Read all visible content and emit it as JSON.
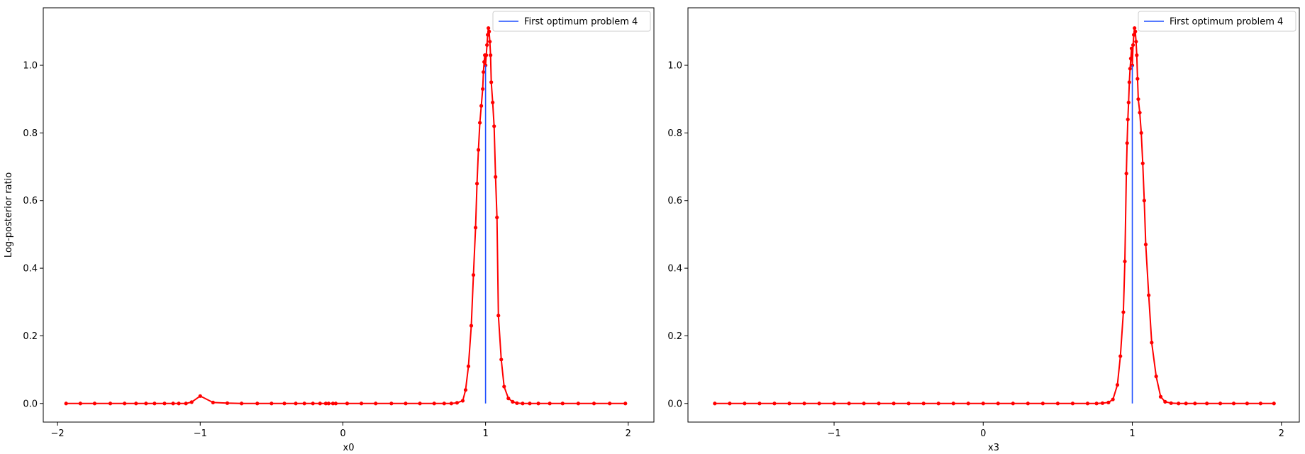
{
  "chart_data": [
    {
      "type": "line",
      "title": "",
      "xlabel": "x0",
      "ylabel": "Log-posterior ratio",
      "xlim": [
        -2.1,
        2.18
      ],
      "ylim": [
        -0.055,
        1.17
      ],
      "xticks": [
        -2,
        -1,
        0,
        1,
        2
      ],
      "xtick_labels": [
        "−2",
        "−1",
        "0",
        "1",
        "2"
      ],
      "yticks": [
        0.0,
        0.2,
        0.4,
        0.6,
        0.8,
        1.0
      ],
      "ytick_labels": [
        "0.0",
        "0.2",
        "0.4",
        "0.6",
        "0.8",
        "1.0"
      ],
      "grid": false,
      "legend": {
        "placement": "top-right",
        "entries": [
          {
            "label": "First optimum problem 4",
            "color": "#1f4fff"
          }
        ]
      },
      "series": [
        {
          "name": "",
          "color": "#ff0000",
          "marker": "dot",
          "x": [
            -1.94,
            -1.84,
            -1.74,
            -1.63,
            -1.53,
            -1.45,
            -1.38,
            -1.32,
            -1.25,
            -1.19,
            -1.15,
            -1.1,
            -1.06,
            -1.0,
            -0.91,
            -0.81,
            -0.71,
            -0.6,
            -0.5,
            -0.41,
            -0.33,
            -0.27,
            -0.21,
            -0.16,
            -0.12,
            -0.1,
            -0.07,
            -0.05,
            0.03,
            0.13,
            0.23,
            0.34,
            0.44,
            0.54,
            0.64,
            0.71,
            0.76,
            0.8,
            0.84,
            0.86,
            0.88,
            0.9,
            0.915,
            0.93,
            0.94,
            0.95,
            0.96,
            0.97,
            0.98,
            0.985,
            0.99,
            0.995,
            1.0,
            1.005,
            1.01,
            1.015,
            1.02,
            1.025,
            1.03,
            1.035,
            1.04,
            1.05,
            1.06,
            1.07,
            1.08,
            1.09,
            1.11,
            1.13,
            1.16,
            1.19,
            1.22,
            1.26,
            1.31,
            1.37,
            1.45,
            1.54,
            1.65,
            1.76,
            1.87,
            1.98
          ],
          "y": [
            0.0,
            0.0,
            0.0,
            0.0,
            0.0,
            0.0,
            0.0,
            0.0,
            0.0,
            0.0,
            0.0,
            0.0,
            0.004,
            0.022,
            0.003,
            0.001,
            0.0,
            0.0,
            0.0,
            0.0,
            0.0,
            0.0,
            0.0,
            0.0,
            0.0,
            0.0,
            0.0,
            0.0,
            0.0,
            0.0,
            0.0,
            0.0,
            0.0,
            0.0,
            0.0,
            0.0,
            0.0,
            0.002,
            0.008,
            0.04,
            0.11,
            0.23,
            0.38,
            0.52,
            0.65,
            0.75,
            0.83,
            0.88,
            0.93,
            0.98,
            1.01,
            1.03,
            1.0,
            1.03,
            1.06,
            1.09,
            1.11,
            1.1,
            1.07,
            1.03,
            0.95,
            0.89,
            0.82,
            0.67,
            0.55,
            0.26,
            0.13,
            0.05,
            0.015,
            0.005,
            0.001,
            0.0,
            0.0,
            0.0,
            0.0,
            0.0,
            0.0,
            0.0,
            0.0,
            0.0
          ]
        },
        {
          "name": "First optimum problem 4",
          "color": "#1f4fff",
          "marker": "none",
          "x": [
            1.0,
            1.0
          ],
          "y": [
            0.0,
            1.0
          ]
        }
      ]
    },
    {
      "type": "line",
      "title": "",
      "xlabel": "x3",
      "ylabel": "",
      "xlim": [
        -1.98,
        2.12
      ],
      "ylim": [
        -0.055,
        1.17
      ],
      "xticks": [
        -1,
        0,
        1,
        2
      ],
      "xtick_labels": [
        "−1",
        "0",
        "1",
        "2"
      ],
      "yticks": [
        0.0,
        0.2,
        0.4,
        0.6,
        0.8,
        1.0
      ],
      "ytick_labels": [
        "0.0",
        "0.2",
        "0.4",
        "0.6",
        "0.8",
        "1.0"
      ],
      "grid": false,
      "legend": {
        "placement": "top-right",
        "entries": [
          {
            "label": "First optimum problem 4",
            "color": "#1f4fff"
          }
        ]
      },
      "series": [
        {
          "name": "",
          "color": "#ff0000",
          "marker": "dot",
          "x": [
            -1.8,
            -1.7,
            -1.6,
            -1.5,
            -1.4,
            -1.3,
            -1.2,
            -1.1,
            -1.0,
            -0.9,
            -0.8,
            -0.7,
            -0.6,
            -0.5,
            -0.4,
            -0.3,
            -0.2,
            -0.1,
            0.0,
            0.1,
            0.2,
            0.3,
            0.4,
            0.5,
            0.6,
            0.7,
            0.76,
            0.8,
            0.84,
            0.87,
            0.9,
            0.92,
            0.94,
            0.95,
            0.96,
            0.965,
            0.97,
            0.975,
            0.98,
            0.985,
            0.99,
            0.995,
            1.0,
            1.005,
            1.01,
            1.015,
            1.02,
            1.025,
            1.03,
            1.035,
            1.04,
            1.05,
            1.06,
            1.07,
            1.08,
            1.09,
            1.11,
            1.13,
            1.16,
            1.19,
            1.22,
            1.26,
            1.31,
            1.36,
            1.42,
            1.5,
            1.59,
            1.68,
            1.77,
            1.86,
            1.95
          ],
          "y": [
            0.0,
            0.0,
            0.0,
            0.0,
            0.0,
            0.0,
            0.0,
            0.0,
            0.0,
            0.0,
            0.0,
            0.0,
            0.0,
            0.0,
            0.0,
            0.0,
            0.0,
            0.0,
            0.0,
            0.0,
            0.0,
            0.0,
            0.0,
            0.0,
            0.0,
            0.0,
            0.0,
            0.001,
            0.003,
            0.012,
            0.055,
            0.14,
            0.27,
            0.42,
            0.68,
            0.77,
            0.84,
            0.89,
            0.95,
            0.99,
            1.02,
            1.05,
            1.0,
            1.06,
            1.09,
            1.11,
            1.1,
            1.07,
            1.03,
            0.96,
            0.9,
            0.86,
            0.8,
            0.71,
            0.6,
            0.47,
            0.32,
            0.18,
            0.08,
            0.02,
            0.005,
            0.001,
            0.0,
            0.0,
            0.0,
            0.0,
            0.0,
            0.0,
            0.0,
            0.0,
            0.0
          ]
        },
        {
          "name": "First optimum problem 4",
          "color": "#1f4fff",
          "marker": "none",
          "x": [
            1.0,
            1.0
          ],
          "y": [
            0.0,
            1.0
          ]
        }
      ]
    }
  ]
}
